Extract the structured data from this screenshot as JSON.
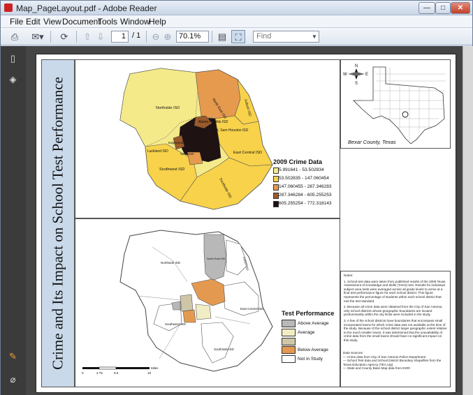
{
  "window": {
    "title": "Map_PageLayout.pdf - Adobe Reader",
    "min": "—",
    "max": "□",
    "close": "✕"
  },
  "menu": [
    "File",
    "Edit",
    "View",
    "Document",
    "Tools",
    "Window",
    "Help"
  ],
  "toolbar": {
    "page_current": "1",
    "page_total": "/ 1",
    "zoom": "70.1%",
    "find_placeholder": "Find"
  },
  "icons": {
    "print": "printer-icon",
    "email": "email-icon",
    "share": "collaborate-icon",
    "prev": "up-arrow-icon",
    "next": "down-arrow-icon",
    "zoom_out": "zoom-out-icon",
    "zoom_in": "zoom-in-icon",
    "fit_page": "fit-page-icon",
    "fit_width": "fullscreen-icon",
    "pages": "pages-panel-icon",
    "layers": "layers-icon",
    "comments": "comment-icon",
    "attachments": "attachment-icon"
  },
  "document": {
    "title": "Crime and Its Impact on School Test Performance",
    "map_top": {
      "legend_title": "2009 Crime Data",
      "legend": [
        {
          "label": "5.991641 - 53.502834",
          "color": "#f5ea8a"
        },
        {
          "label": "53.502835 - 147.060454",
          "color": "#f7d24a"
        },
        {
          "label": "147.060455 - 287.346283",
          "color": "#e69a4e"
        },
        {
          "label": "287.346284 - 605.255253",
          "color": "#9a5a2a"
        },
        {
          "label": "605.255254 - 772.318143",
          "color": "#1e1212"
        }
      ],
      "labels": [
        "Northside ISD",
        "North East ISD",
        "Judson ISD",
        "Alamo Heights ISD",
        "Ft. Sam Houston ISD",
        "East Central ISD",
        "Southwest ISD",
        "Lackland ISD",
        "Edgewood",
        "Somerset",
        "Southside ISD"
      ]
    },
    "map_bottom": {
      "legend_title": "Test Performance",
      "legend": [
        {
          "label": "Above Average",
          "color": "#b8b8b8"
        },
        {
          "label": "Average",
          "color": "#f1ecc4"
        },
        {
          "label": "",
          "color": "#cfc6a8"
        },
        {
          "label": "Below Average",
          "color": "#e39a50"
        },
        {
          "label": "Not in Study",
          "color": "#ffffff"
        }
      ],
      "labels": [
        "Northside ISD",
        "North East ISD",
        "Judson ISD",
        "East Central ISD",
        "Southwest ISD",
        "Southside ISD"
      ],
      "scale_ticks": [
        "0",
        "4.75",
        "9.5",
        "19"
      ],
      "scale_unit": "Miles"
    },
    "inset": {
      "caption": "Bexar County, Texas",
      "compass": [
        "N",
        "S",
        "E",
        "W"
      ]
    },
    "notes": {
      "heading": "Notes:",
      "items": [
        "1.  School test data were taken from published results of the 2009 Texas Assessment of Knowledge and Skills (TAKS) test. Results for individual subject-area tests were averaged across all grade levels to arrive at a final test performance figure for each school district. This figure represents the percentage of students within each school district that met the test standard.",
        "2.  Because all crime data were obtained from the City of San Antonio, only school districts whose geographic boundaries are located predominantly within the city limits were included in the study.",
        "3.  A few of the school districts have boundaries that encompass small incorporated towns for which crime data was not available at the time of the study. Because of the school district larger geographic extent relative to the much smaller towns, it was determined that the unavailability of crime data from the small towns should have no significant impact on this study."
      ],
      "sources_heading": "Data Sources:",
      "sources": [
        "— Crime data from City of San Antonio Police Department",
        "— School Test data and School District Boundary shapefiles from the Texas Education Agency (TEA.org)",
        "— State and County Base Map data from ESRI"
      ]
    }
  }
}
